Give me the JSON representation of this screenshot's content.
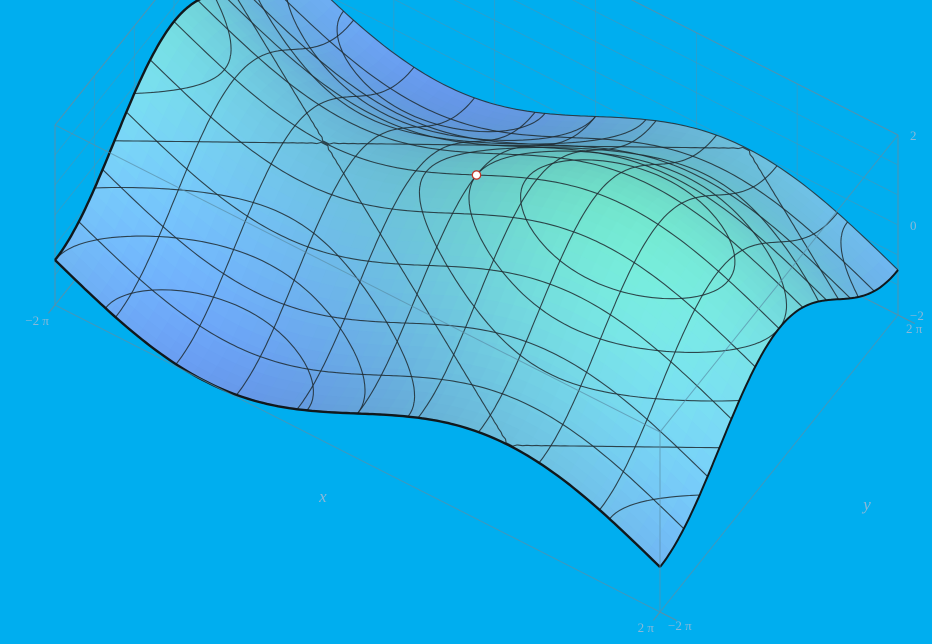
{
  "chart_data": {
    "type": "surface3d",
    "title": "",
    "xlabel": "x",
    "ylabel": "y",
    "zlabel": "",
    "x_range": [
      -6.2832,
      6.2832
    ],
    "y_range": [
      -6.2832,
      6.2832
    ],
    "z_range": [
      -2,
      2
    ],
    "x_ticks": [
      {
        "value": -6.2832,
        "label": "−2 π"
      },
      {
        "value": 6.2832,
        "label": "2 π"
      }
    ],
    "y_ticks": [
      {
        "value": -6.2832,
        "label": "−2 π"
      },
      {
        "value": 6.2832,
        "label": "2 π"
      }
    ],
    "z_ticks": [
      {
        "value": -2,
        "label": "−2"
      },
      {
        "value": 0,
        "label": "0"
      },
      {
        "value": 2,
        "label": "2"
      }
    ],
    "surface_function": "sin(x/2) + cos(y/2)",
    "mesh_lines": "contours in x, y, and z",
    "highlighted_point": {
      "x": 0,
      "y": 0,
      "z": 1
    },
    "box": true,
    "grid": true,
    "colors": {
      "background": "#00aeef",
      "surface_low": "#6fb0ff",
      "surface_high": "#7af5dc",
      "mesh": "#1e2a30",
      "box": "#5a8fa8",
      "tick_label": "#8ab8d8",
      "point_fill": "#ffffff",
      "point_stroke": "#c0392b"
    }
  }
}
